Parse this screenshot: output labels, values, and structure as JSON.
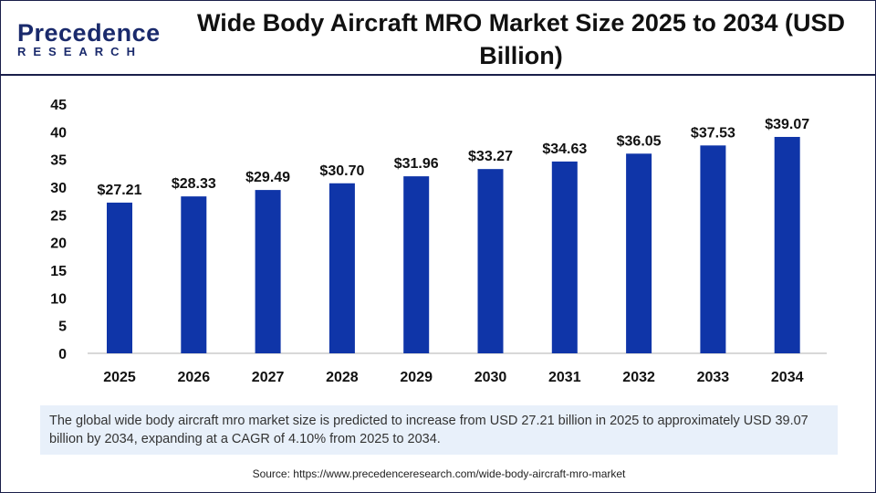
{
  "logo": {
    "line1": "Precedence",
    "line2": "RESEARCH"
  },
  "title": "Wide Body Aircraft MRO Market Size 2025 to 2034 (USD Billion)",
  "chart_data": {
    "type": "bar",
    "categories": [
      "2025",
      "2026",
      "2027",
      "2028",
      "2029",
      "2030",
      "2031",
      "2032",
      "2033",
      "2034"
    ],
    "values": [
      27.21,
      28.33,
      29.49,
      30.7,
      31.96,
      33.27,
      34.63,
      36.05,
      37.53,
      39.07
    ],
    "data_labels": [
      "$27.21",
      "$28.33",
      "$29.49",
      "$30.70",
      "$31.96",
      "$33.27",
      "$34.63",
      "$36.05",
      "$37.53",
      "$39.07"
    ],
    "yticks": [
      0,
      5,
      10,
      15,
      20,
      25,
      30,
      35,
      40,
      45
    ],
    "ylim": [
      0,
      45
    ],
    "grid": false,
    "bar_color": "#0f35a8"
  },
  "note": "The global wide body aircraft mro market size is predicted to increase from USD 27.21 billion in 2025 to approximately USD 39.07 billion by 2034, expanding at a CAGR of 4.10% from 2025 to 2034.",
  "source": "Source: https://www.precedenceresearch.com/wide-body-aircraft-mro-market"
}
